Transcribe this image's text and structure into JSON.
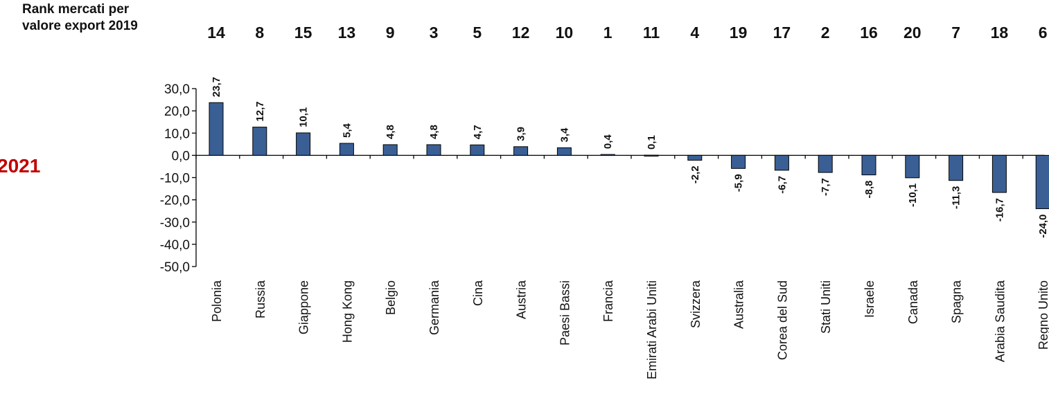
{
  "rank_header": {
    "line1": "Rank mercati per",
    "line2": "valore export 2019"
  },
  "year_label": "2021",
  "colors": {
    "bar": "#3a5f95",
    "year": "#c00000"
  },
  "chart_data": {
    "type": "bar",
    "categories": [
      "Polonia",
      "Russia",
      "Giappone",
      "Hong Kong",
      "Belgio",
      "Germania",
      "Cina",
      "Austria",
      "Paesi Bassi",
      "Francia",
      "Emirati Arabi Uniti",
      "Svizzera",
      "Australia",
      "Corea del Sud",
      "Stati Uniti",
      "Israele",
      "Canada",
      "Spagna",
      "Arabia Saudita",
      "Regno Unito"
    ],
    "values": [
      23.7,
      12.7,
      10.1,
      5.4,
      4.8,
      4.8,
      4.7,
      3.9,
      3.4,
      0.4,
      0.1,
      -2.2,
      -5.9,
      -6.7,
      -7.7,
      -8.8,
      -10.1,
      -11.3,
      -16.7,
      -24.0
    ],
    "value_labels": [
      "23,7",
      "12,7",
      "10,1",
      "5,4",
      "4,8",
      "4,8",
      "4,7",
      "3,9",
      "3,4",
      "0,4",
      "0,1",
      "-2,2",
      "-5,9",
      "-6,7",
      "-7,7",
      "-8,8",
      "-10,1",
      "-11,3",
      "-16,7",
      "-24,0"
    ],
    "ranks": [
      "14",
      "8",
      "15",
      "13",
      "9",
      "3",
      "5",
      "12",
      "10",
      "1",
      "11",
      "4",
      "19",
      "17",
      "2",
      "16",
      "20",
      "7",
      "18",
      "6"
    ],
    "yticks": [
      30,
      20,
      10,
      0,
      -10,
      -20,
      -30,
      -40,
      -50
    ],
    "ytick_labels": [
      "30,0",
      "20,0",
      "10,0",
      "0,0",
      "-10,0",
      "-20,0",
      "-30,0",
      "-40,0",
      "-50,0"
    ],
    "ylim": [
      -50,
      30
    ],
    "title": "",
    "xlabel": "",
    "ylabel": ""
  }
}
